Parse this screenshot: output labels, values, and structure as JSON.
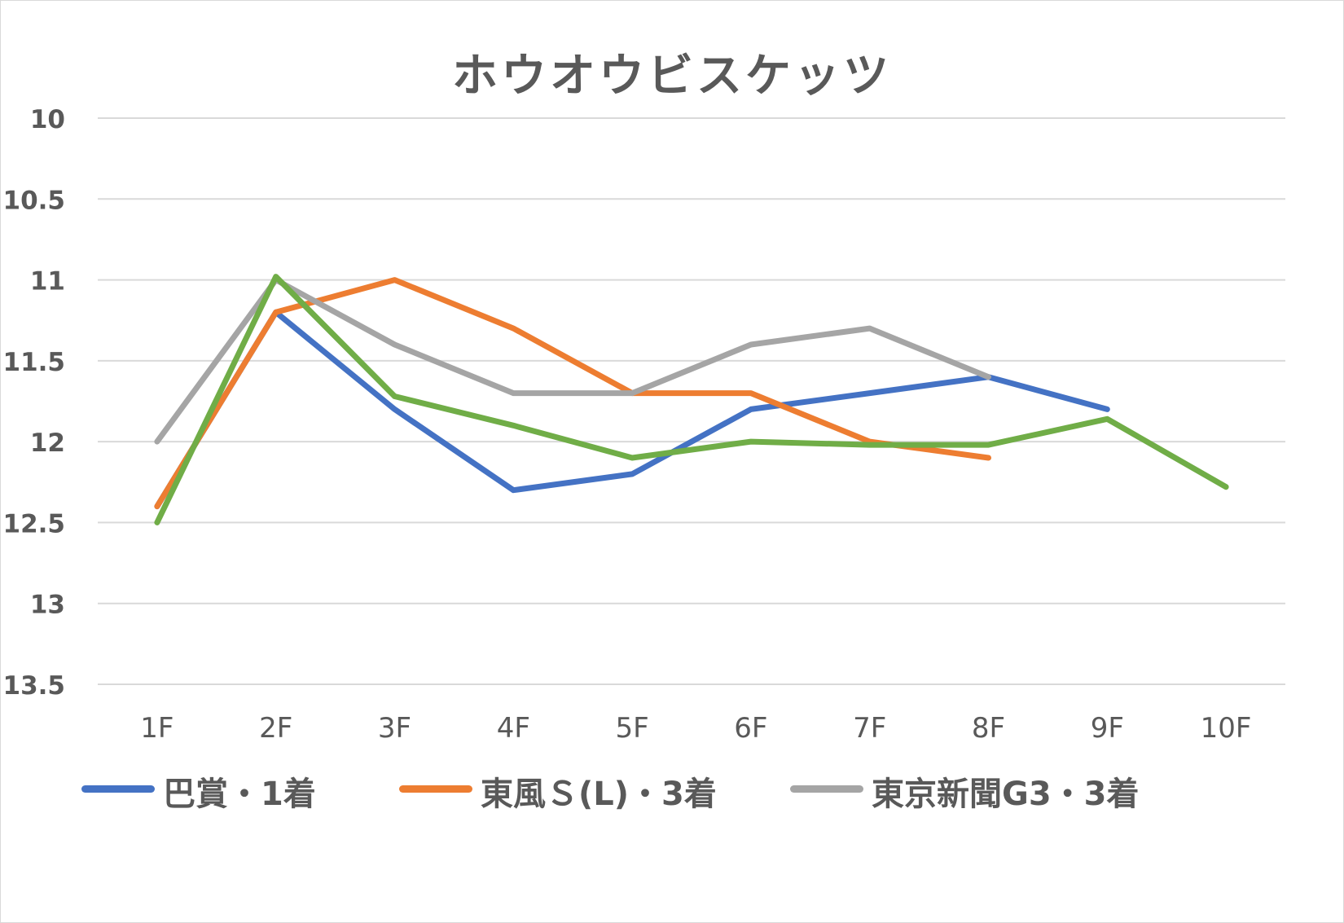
{
  "chart_data": {
    "type": "line",
    "title": "ホウオウビスケッツ",
    "xlabel": "",
    "ylabel": "",
    "categories": [
      "1F",
      "2F",
      "3F",
      "4F",
      "5F",
      "6F",
      "7F",
      "8F",
      "9F",
      "10F"
    ],
    "ylim": [
      10,
      13.5
    ],
    "y_reversed": true,
    "y_ticks": [
      "10",
      "10.5",
      "11",
      "11.5",
      "12",
      "12.5",
      "13",
      "13.5"
    ],
    "grid": true,
    "legend_position": "bottom",
    "series": [
      {
        "name": "巴賞・1着",
        "color": "#4472c4",
        "values": [
          12.4,
          11.2,
          11.8,
          12.3,
          12.2,
          11.8,
          11.7,
          11.6,
          11.8,
          null
        ]
      },
      {
        "name": "東風Ｓ(L)・3着",
        "color": "#ed7d31",
        "values": [
          12.4,
          11.2,
          11.0,
          11.3,
          11.7,
          11.7,
          12.0,
          12.1,
          null,
          null
        ]
      },
      {
        "name": "東京新聞G3・3着",
        "color": "#a5a5a5",
        "values": [
          12.0,
          11.0,
          11.4,
          11.7,
          11.7,
          11.4,
          11.3,
          11.6,
          null,
          null
        ]
      },
      {
        "color": "#70ad47",
        "values": [
          12.5,
          10.98,
          11.72,
          11.9,
          12.1,
          12.0,
          12.02,
          12.02,
          11.86,
          12.28
        ]
      }
    ]
  }
}
